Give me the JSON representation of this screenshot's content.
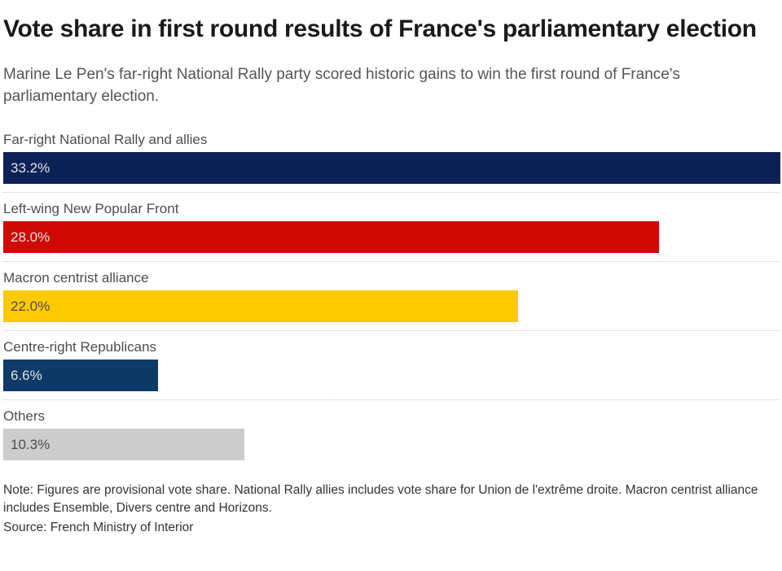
{
  "header": {
    "title": "Vote share in first round results of France's parliamentary election",
    "subtitle": "Marine Le Pen's far-right National Rally party scored historic gains to win the first round of France's parliamentary election."
  },
  "chart_data": {
    "type": "bar",
    "orientation": "horizontal",
    "title": "Vote share in first round results of France's parliamentary election",
    "categories": [
      "Far-right National Rally and allies",
      "Left-wing New Popular Front",
      "Macron centrist alliance",
      "Centre-right Republicans",
      "Others"
    ],
    "values": [
      33.2,
      28.0,
      22.0,
      6.6,
      10.3
    ],
    "value_labels": [
      "33.2%",
      "28.0%",
      "22.0%",
      "6.6%",
      "10.3%"
    ],
    "bar_colors": [
      "#0c2156",
      "#cf0a04",
      "#fdc900",
      "#0e3a68",
      "#cccccc"
    ],
    "value_text_colors": [
      "#e3e3e3",
      "#e3e3e3",
      "#4d4d4d",
      "#e3e3e3",
      "#4d4d4d"
    ],
    "xlim": [
      0,
      33.2
    ],
    "grid": false,
    "legend": false
  },
  "footer": {
    "note": "Note: Figures are provisional vote share. National Rally allies includes vote share for Union de l'extrême droite. Macron centrist alliance includes Ensemble, Divers centre and Horizons.",
    "source": "Source: French Ministry of Interior"
  }
}
